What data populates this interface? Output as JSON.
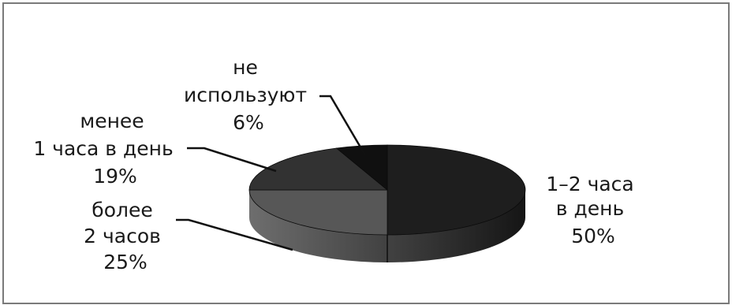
{
  "chart_data": {
    "type": "pie",
    "style": "3d",
    "legend": "none",
    "title": "",
    "slices": [
      {
        "key": "one_two",
        "label_lines": [
          "1–2 часа",
          "в день"
        ],
        "value_label": "50%",
        "value": 50
      },
      {
        "key": "more_two",
        "label_lines": [
          "более",
          "2 часов"
        ],
        "value_label": "25%",
        "value": 25
      },
      {
        "key": "less_one",
        "label_lines": [
          "менее",
          "1 часа в день"
        ],
        "value_label": "19%",
        "value": 19
      },
      {
        "key": "not_used",
        "label_lines": [
          "не",
          "используют"
        ],
        "value_label": "6%",
        "value": 6
      }
    ]
  }
}
